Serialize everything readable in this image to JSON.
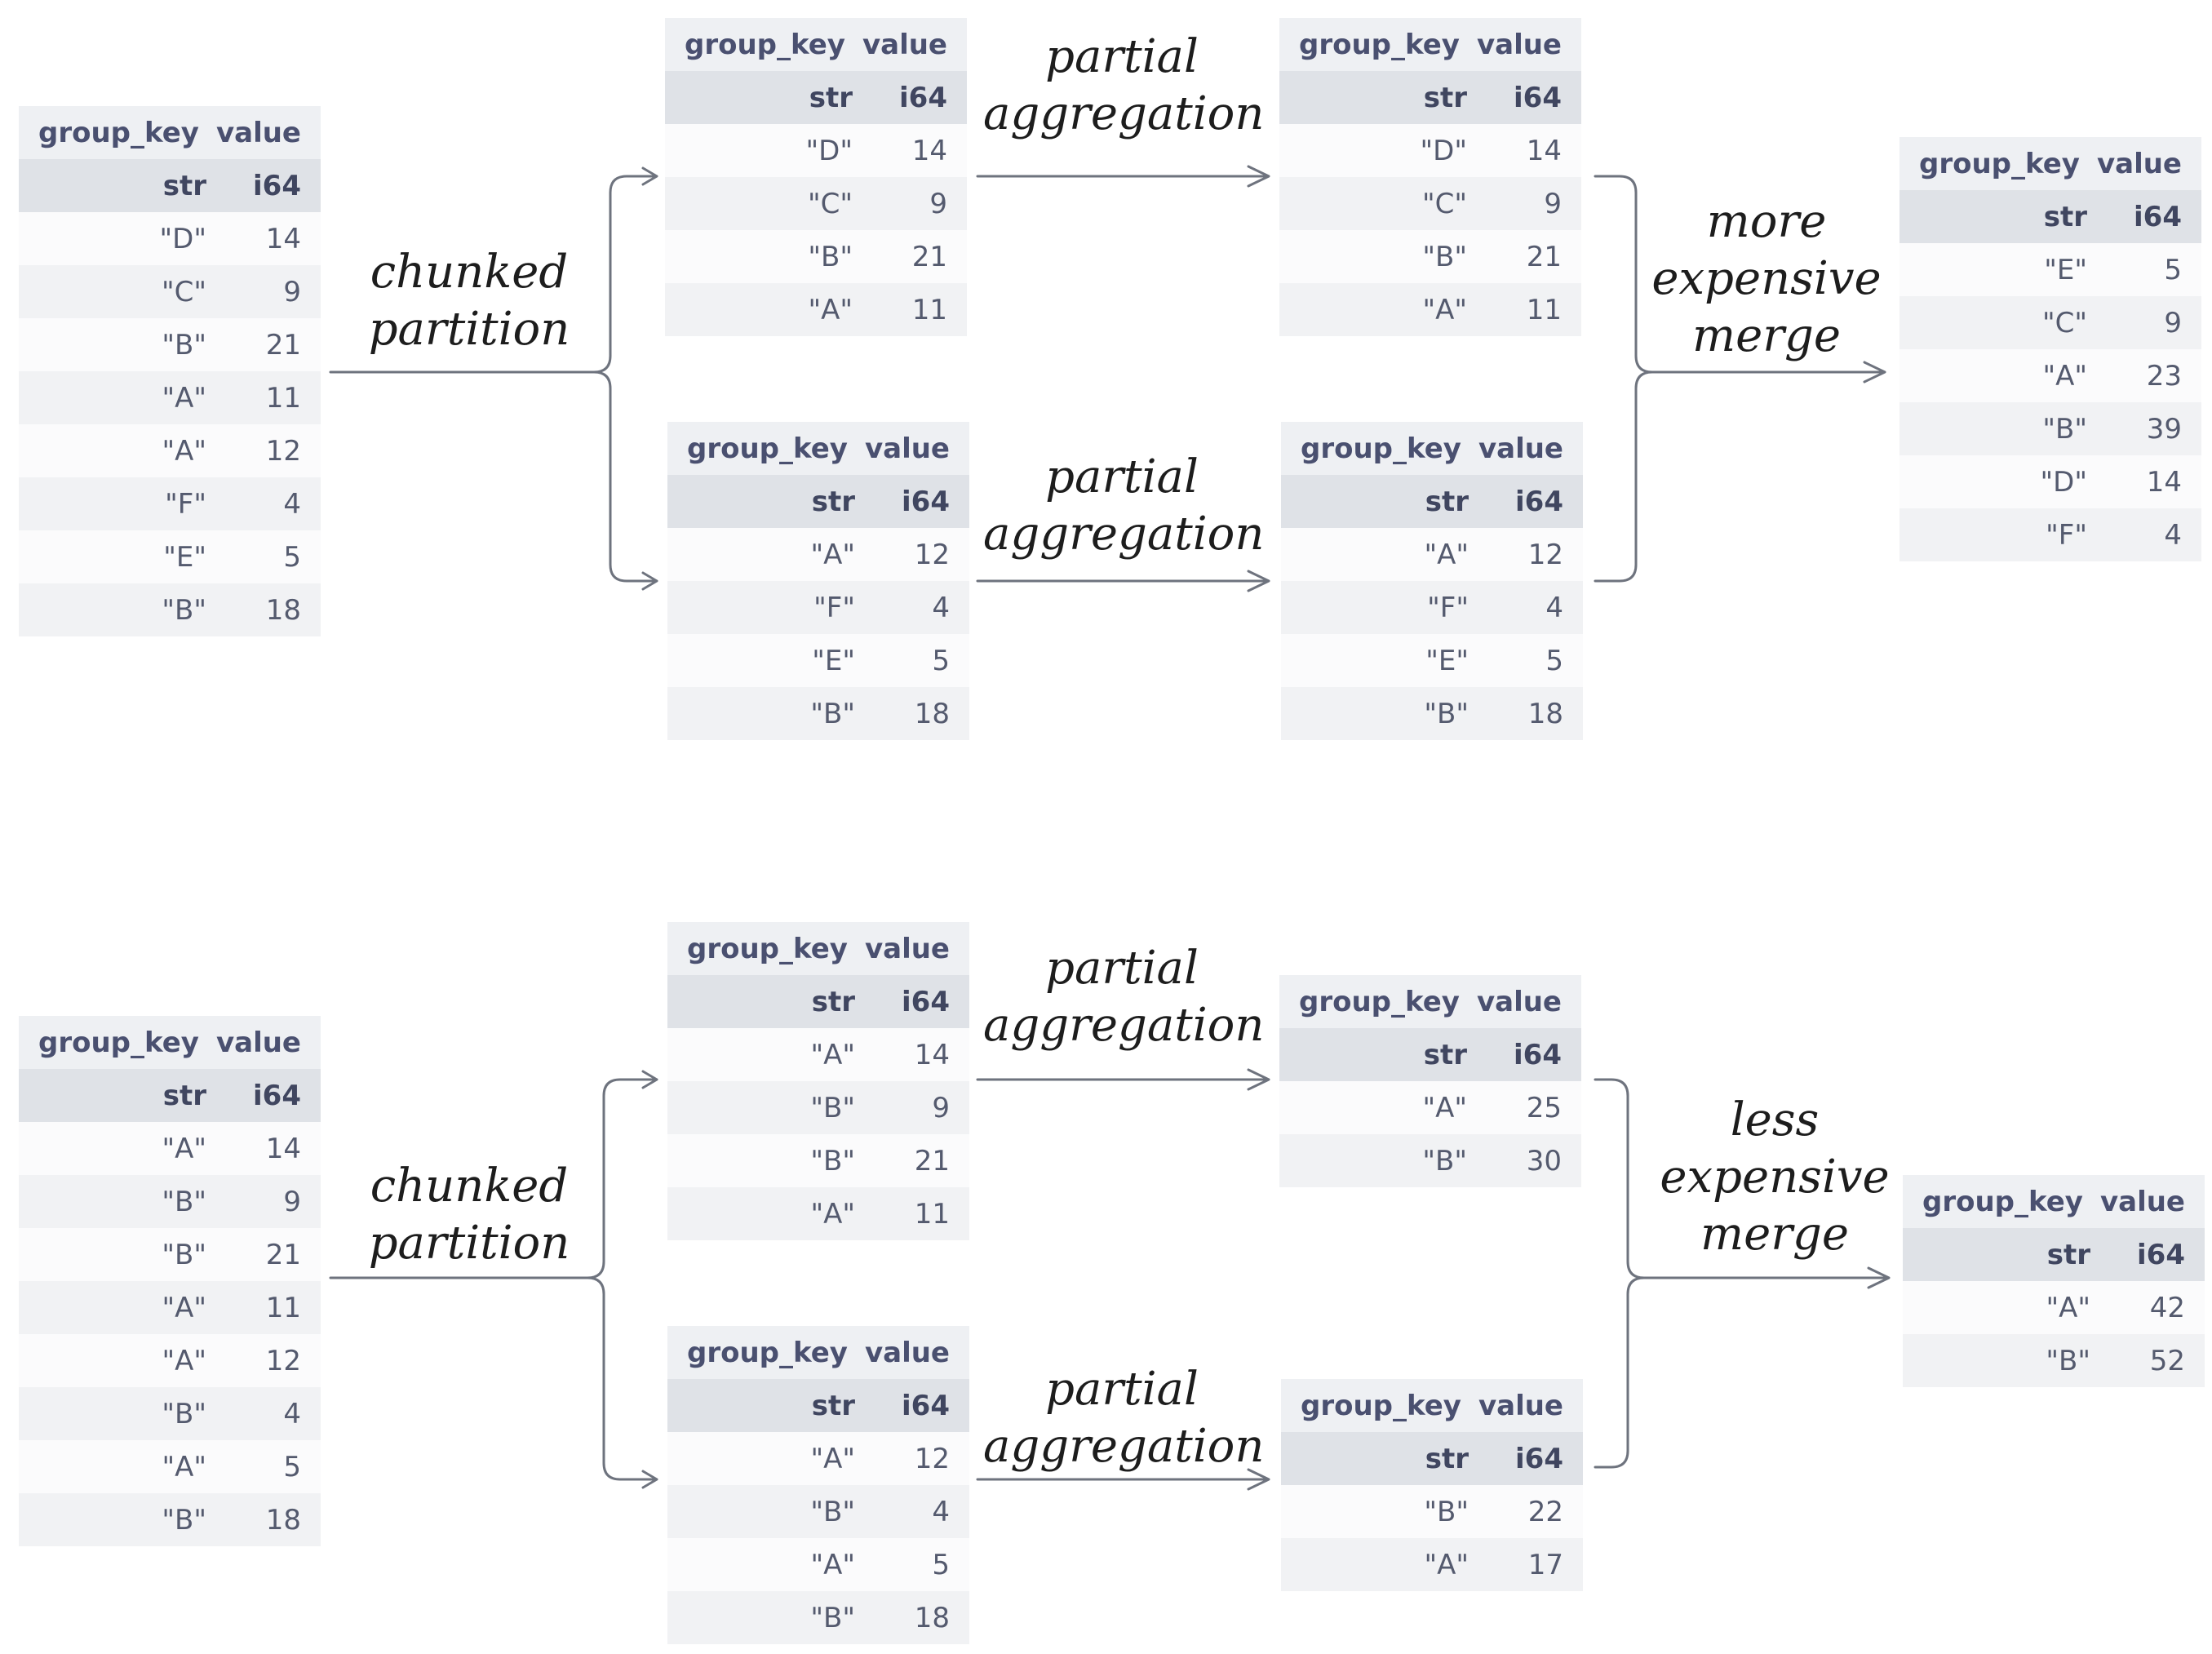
{
  "columns": {
    "key": "group_key",
    "value": "value",
    "key_type": "str",
    "value_type": "i64"
  },
  "top": {
    "input": {
      "rows": [
        [
          "\"D\"",
          "14"
        ],
        [
          "\"C\"",
          "9"
        ],
        [
          "\"B\"",
          "21"
        ],
        [
          "\"A\"",
          "11"
        ],
        [
          "\"A\"",
          "12"
        ],
        [
          "\"F\"",
          "4"
        ],
        [
          "\"E\"",
          "5"
        ],
        [
          "\"B\"",
          "18"
        ]
      ]
    },
    "partition_label": [
      "chunked",
      "partition"
    ],
    "chunk1": {
      "rows": [
        [
          "\"D\"",
          "14"
        ],
        [
          "\"C\"",
          "9"
        ],
        [
          "\"B\"",
          "21"
        ],
        [
          "\"A\"",
          "11"
        ]
      ]
    },
    "chunk2": {
      "rows": [
        [
          "\"A\"",
          "12"
        ],
        [
          "\"F\"",
          "4"
        ],
        [
          "\"E\"",
          "5"
        ],
        [
          "\"B\"",
          "18"
        ]
      ]
    },
    "agg_label": [
      "partial",
      "aggregation"
    ],
    "agg1": {
      "rows": [
        [
          "\"D\"",
          "14"
        ],
        [
          "\"C\"",
          "9"
        ],
        [
          "\"B\"",
          "21"
        ],
        [
          "\"A\"",
          "11"
        ]
      ]
    },
    "agg2": {
      "rows": [
        [
          "\"A\"",
          "12"
        ],
        [
          "\"F\"",
          "4"
        ],
        [
          "\"E\"",
          "5"
        ],
        [
          "\"B\"",
          "18"
        ]
      ]
    },
    "merge_label": [
      "more",
      "expensive",
      "merge"
    ],
    "result": {
      "rows": [
        [
          "\"E\"",
          "5"
        ],
        [
          "\"C\"",
          "9"
        ],
        [
          "\"A\"",
          "23"
        ],
        [
          "\"B\"",
          "39"
        ],
        [
          "\"D\"",
          "14"
        ],
        [
          "\"F\"",
          "4"
        ]
      ]
    }
  },
  "bottom": {
    "input": {
      "rows": [
        [
          "\"A\"",
          "14"
        ],
        [
          "\"B\"",
          "9"
        ],
        [
          "\"B\"",
          "21"
        ],
        [
          "\"A\"",
          "11"
        ],
        [
          "\"A\"",
          "12"
        ],
        [
          "\"B\"",
          "4"
        ],
        [
          "\"A\"",
          "5"
        ],
        [
          "\"B\"",
          "18"
        ]
      ]
    },
    "partition_label": [
      "chunked",
      "partition"
    ],
    "chunk1": {
      "rows": [
        [
          "\"A\"",
          "14"
        ],
        [
          "\"B\"",
          "9"
        ],
        [
          "\"B\"",
          "21"
        ],
        [
          "\"A\"",
          "11"
        ]
      ]
    },
    "chunk2": {
      "rows": [
        [
          "\"A\"",
          "12"
        ],
        [
          "\"B\"",
          "4"
        ],
        [
          "\"A\"",
          "5"
        ],
        [
          "\"B\"",
          "18"
        ]
      ]
    },
    "agg_label": [
      "partial",
      "aggregation"
    ],
    "agg1": {
      "rows": [
        [
          "\"A\"",
          "25"
        ],
        [
          "\"B\"",
          "30"
        ]
      ]
    },
    "agg2": {
      "rows": [
        [
          "\"B\"",
          "22"
        ],
        [
          "\"A\"",
          "17"
        ]
      ]
    },
    "merge_label": [
      "less",
      "expensive",
      "merge"
    ],
    "result": {
      "rows": [
        [
          "\"A\"",
          "42"
        ],
        [
          "\"B\"",
          "52"
        ]
      ]
    }
  }
}
